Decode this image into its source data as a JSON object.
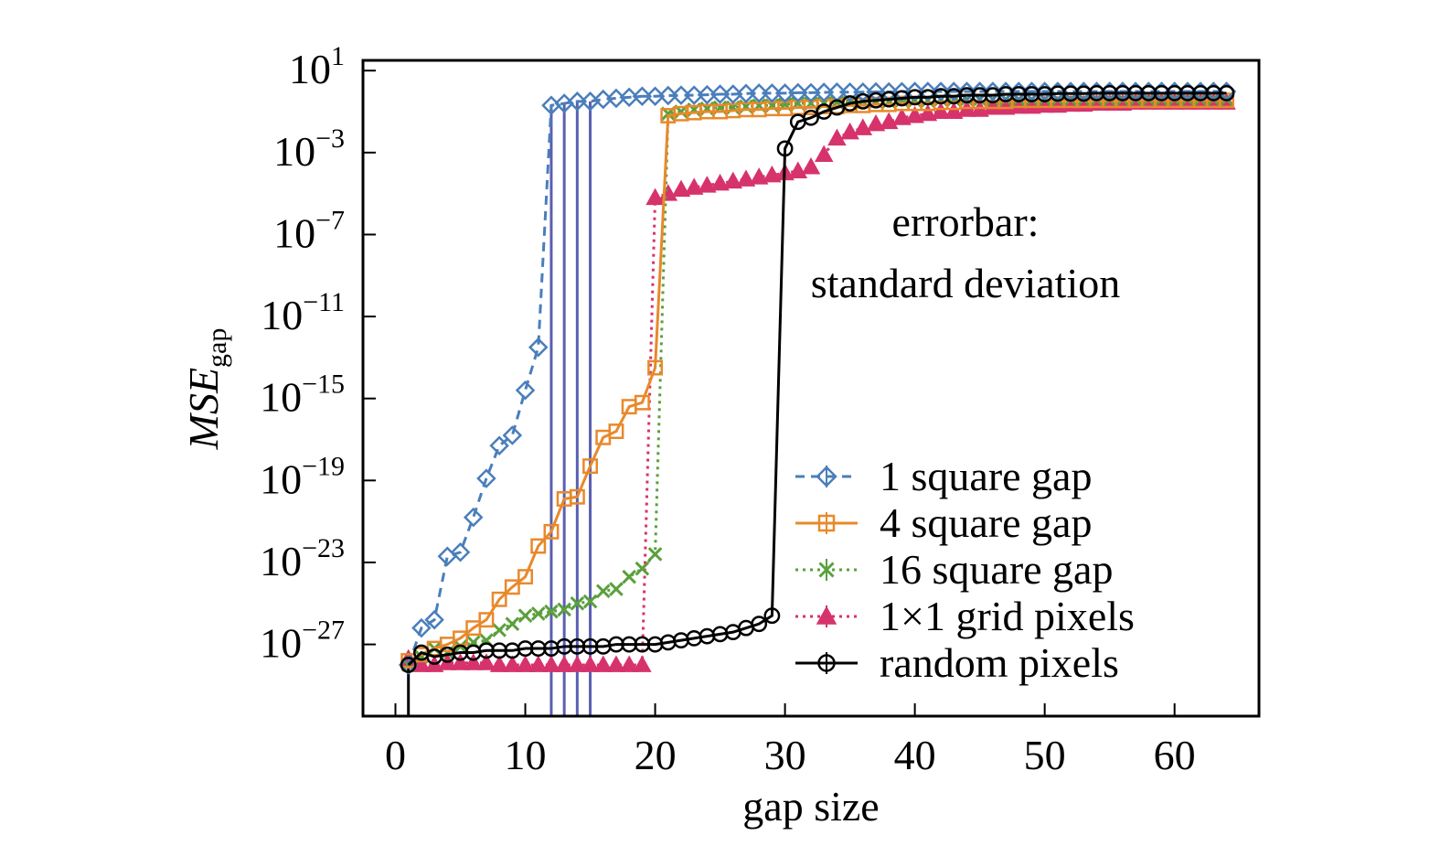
{
  "chart_data": {
    "type": "line",
    "xlabel": "gap size",
    "ylabel": "MSE",
    "ylabel_sub": "gap",
    "y_scale": "log",
    "xlim": [
      -2.5,
      66.5
    ],
    "ylim_exponent": [
      -30.5,
      1.5
    ],
    "x_ticks": [
      0,
      10,
      20,
      30,
      40,
      50,
      60
    ],
    "y_ticks": [
      {
        "base": "10",
        "exp": "1",
        "value": 1
      },
      {
        "base": "10",
        "exp": "−3",
        "value": -3
      },
      {
        "base": "10",
        "exp": "−7",
        "value": -7
      },
      {
        "base": "10",
        "exp": "−11",
        "value": -11
      },
      {
        "base": "10",
        "exp": "−15",
        "value": -15
      },
      {
        "base": "10",
        "exp": "−19",
        "value": -19
      },
      {
        "base": "10",
        "exp": "−23",
        "value": -23
      },
      {
        "base": "10",
        "exp": "−27",
        "value": -27
      }
    ],
    "grid": false,
    "legend_position": "bottom-right",
    "annotation": [
      "errorbar:",
      "standard deviation"
    ],
    "series": [
      {
        "name": "1 square gap",
        "color": "#4a7ebb",
        "marker": "diamond",
        "line": "dashed",
        "x": [
          1,
          2,
          3,
          4,
          5,
          6,
          7,
          8,
          9,
          10,
          11,
          12,
          13,
          14,
          15,
          16,
          17,
          18,
          19,
          20,
          21,
          22,
          23,
          24,
          25,
          26,
          27,
          28,
          29,
          30,
          31,
          32,
          33,
          34,
          35,
          36,
          37,
          38,
          39,
          40,
          41,
          42,
          43,
          44,
          45,
          46,
          47,
          48,
          49,
          50,
          51,
          52,
          53,
          54,
          55,
          56,
          57,
          58,
          59,
          60,
          61,
          62,
          63,
          64
        ],
        "log10_y": [
          -28,
          -26.2,
          -25.8,
          -22.7,
          -22.5,
          -20.8,
          -18.9,
          -17.3,
          -16.8,
          -14.6,
          -12.5,
          -0.7,
          -0.6,
          -0.5,
          -0.5,
          -0.4,
          -0.35,
          -0.3,
          -0.25,
          -0.25,
          -0.22,
          -0.2,
          -0.2,
          -0.18,
          -0.15,
          -0.15,
          -0.12,
          -0.1,
          -0.1,
          -0.1,
          -0.08,
          -0.08,
          -0.06,
          -0.05,
          -0.05,
          -0.05,
          -0.04,
          -0.04,
          -0.03,
          -0.02,
          -0.02,
          -0.02,
          -0.02,
          -0.02,
          -0.02,
          -0.02,
          -0.02,
          -0.02,
          -0.02,
          -0.02,
          -0.02,
          -0.02,
          -0.02,
          -0.02,
          -0.02,
          -0.02,
          -0.02,
          -0.02,
          -0.02,
          -0.02,
          -0.02,
          -0.02,
          -0.02,
          -0.02
        ],
        "errorbar_drops": [
          12,
          13,
          14,
          15
        ]
      },
      {
        "name": "4 square gap",
        "color": "#e8892b",
        "marker": "square",
        "line": "solid",
        "x": [
          1,
          2,
          3,
          4,
          5,
          6,
          7,
          8,
          9,
          10,
          11,
          12,
          13,
          14,
          15,
          16,
          17,
          18,
          19,
          20,
          21,
          22,
          23,
          24,
          25,
          26,
          27,
          28,
          29,
          30,
          31,
          32,
          33,
          34,
          35,
          36,
          37,
          38,
          39,
          40,
          41,
          42,
          43,
          44,
          45,
          46,
          47,
          48,
          49,
          50,
          51,
          52,
          53,
          54,
          55,
          56,
          57,
          58,
          59,
          60,
          61,
          62,
          63,
          64
        ],
        "log10_y": [
          -27.8,
          -27.5,
          -27.2,
          -27,
          -26.7,
          -26.2,
          -25.8,
          -24.8,
          -24.2,
          -23.7,
          -22.2,
          -21.5,
          -19.9,
          -19.8,
          -18.3,
          -16.9,
          -16.6,
          -15.4,
          -15.2,
          -13.5,
          -1.2,
          -1.1,
          -1.05,
          -1,
          -1,
          -0.95,
          -0.9,
          -0.9,
          -0.85,
          -0.85,
          -0.8,
          -0.8,
          -0.75,
          -0.75,
          -0.7,
          -0.7,
          -0.65,
          -0.65,
          -0.6,
          -0.6,
          -0.6,
          -0.55,
          -0.55,
          -0.5,
          -0.5,
          -0.5,
          -0.5,
          -0.45,
          -0.45,
          -0.45,
          -0.45,
          -0.45,
          -0.45,
          -0.45,
          -0.45,
          -0.45,
          -0.45,
          -0.45,
          -0.45,
          -0.45,
          -0.45,
          -0.45,
          -0.45,
          -0.45
        ]
      },
      {
        "name": "16 square gap",
        "color": "#5aa03c",
        "marker": "x",
        "line": "dotted",
        "x": [
          1,
          2,
          3,
          4,
          5,
          6,
          7,
          8,
          9,
          10,
          11,
          12,
          13,
          14,
          15,
          16,
          17,
          18,
          19,
          20,
          21,
          22,
          23,
          24,
          25,
          26,
          27,
          28,
          29,
          30,
          31,
          32,
          33,
          34,
          35,
          36,
          37,
          38,
          39,
          40,
          41,
          42,
          43,
          44,
          45,
          46,
          47,
          48,
          49,
          50,
          51,
          52,
          53,
          54,
          55,
          56,
          57,
          58,
          59,
          60,
          61,
          62,
          63,
          64
        ],
        "log10_y": [
          -28,
          -27.6,
          -27.2,
          -27.4,
          -27.1,
          -26.9,
          -26.8,
          -26.3,
          -26,
          -25.6,
          -25.5,
          -25.4,
          -25.3,
          -25,
          -24.9,
          -24.4,
          -24.3,
          -23.7,
          -23.3,
          -22.6,
          -1.1,
          -1,
          -0.9,
          -0.85,
          -0.8,
          -0.8,
          -0.75,
          -0.7,
          -0.7,
          -0.65,
          -0.6,
          -0.6,
          -0.6,
          -0.55,
          -0.55,
          -0.5,
          -0.5,
          -0.5,
          -0.45,
          -0.45,
          -0.45,
          -0.4,
          -0.4,
          -0.4,
          -0.4,
          -0.4,
          -0.4,
          -0.4,
          -0.4,
          -0.4,
          -0.4,
          -0.4,
          -0.4,
          -0.4,
          -0.4,
          -0.4,
          -0.4,
          -0.4,
          -0.4,
          -0.4,
          -0.4,
          -0.4,
          -0.4,
          -0.4
        ]
      },
      {
        "name": "1×1 grid pixels",
        "color": "#d6336c",
        "marker": "triangle",
        "line": "dotted",
        "x": [
          1,
          2,
          3,
          4,
          5,
          6,
          7,
          8,
          9,
          10,
          11,
          12,
          13,
          14,
          15,
          16,
          17,
          18,
          19,
          20,
          21,
          22,
          23,
          24,
          25,
          26,
          27,
          28,
          29,
          30,
          31,
          32,
          33,
          34,
          35,
          36,
          37,
          38,
          39,
          40,
          41,
          42,
          43,
          44,
          45,
          46,
          47,
          48,
          49,
          50,
          51,
          52,
          53,
          54,
          55,
          56,
          57,
          58,
          59,
          60,
          61,
          62,
          63,
          64
        ],
        "log10_y": [
          -27.7,
          -28,
          -28,
          -27.9,
          -27.9,
          -27.9,
          -27.9,
          -28,
          -28,
          -28,
          -28,
          -28,
          -28,
          -28,
          -28,
          -28,
          -28,
          -28,
          -28,
          -5.2,
          -5,
          -4.8,
          -4.7,
          -4.6,
          -4.5,
          -4.4,
          -4.3,
          -4.2,
          -4.1,
          -4,
          -3.9,
          -3.7,
          -3.1,
          -2.3,
          -2,
          -1.8,
          -1.6,
          -1.5,
          -1.3,
          -1.2,
          -1.1,
          -1,
          -1,
          -0.9,
          -0.9,
          -0.8,
          -0.8,
          -0.75,
          -0.75,
          -0.7,
          -0.7,
          -0.65,
          -0.65,
          -0.6,
          -0.6,
          -0.6,
          -0.55,
          -0.55,
          -0.55,
          -0.55,
          -0.55,
          -0.55,
          -0.55,
          -0.55
        ]
      },
      {
        "name": "random pixels",
        "color": "#000000",
        "marker": "circle",
        "line": "solid",
        "x": [
          1,
          2,
          3,
          4,
          5,
          6,
          7,
          8,
          9,
          10,
          11,
          12,
          13,
          14,
          15,
          16,
          17,
          18,
          19,
          20,
          21,
          22,
          23,
          24,
          25,
          26,
          27,
          28,
          29,
          30,
          31,
          32,
          33,
          34,
          35,
          36,
          37,
          38,
          39,
          40,
          41,
          42,
          43,
          44,
          45,
          46,
          47,
          48,
          49,
          50,
          51,
          52,
          53,
          54,
          55,
          56,
          57,
          58,
          59,
          60,
          61,
          62,
          63,
          64
        ],
        "log10_y": [
          -28,
          -27.4,
          -27.6,
          -27.5,
          -27.4,
          -27.4,
          -27.3,
          -27.3,
          -27.3,
          -27.2,
          -27.2,
          -27.2,
          -27.1,
          -27.1,
          -27.1,
          -27.1,
          -27,
          -27,
          -27,
          -27,
          -26.9,
          -26.8,
          -26.7,
          -26.6,
          -26.5,
          -26.4,
          -26.2,
          -26,
          -25.6,
          -2.8,
          -1.5,
          -1.3,
          -1,
          -0.8,
          -0.6,
          -0.5,
          -0.45,
          -0.4,
          -0.35,
          -0.3,
          -0.3,
          -0.25,
          -0.25,
          -0.2,
          -0.2,
          -0.2,
          -0.15,
          -0.15,
          -0.15,
          -0.15,
          -0.12,
          -0.12,
          -0.12,
          -0.1,
          -0.1,
          -0.1,
          -0.1,
          -0.1,
          -0.1,
          -0.1,
          -0.1,
          -0.1,
          -0.1,
          -0.1
        ],
        "errorbar_drops": [
          1
        ]
      }
    ]
  }
}
